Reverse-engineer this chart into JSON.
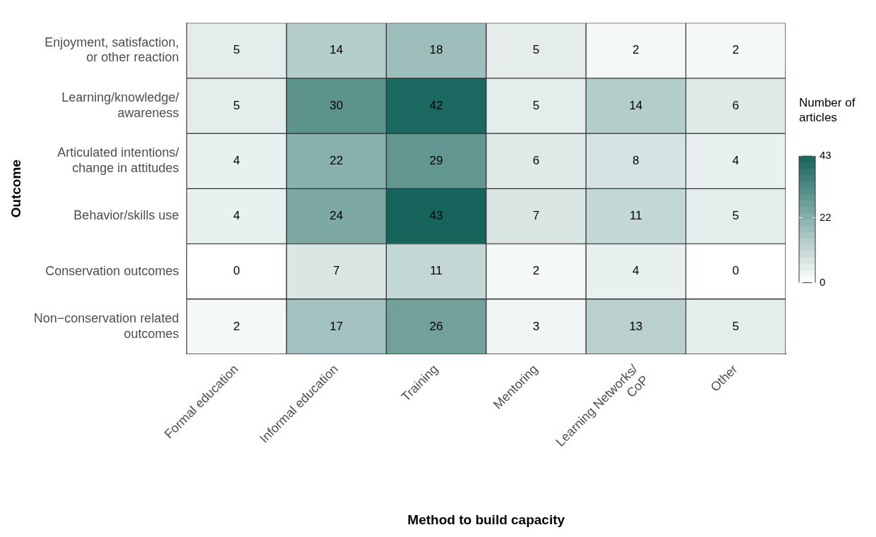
{
  "chart_data": {
    "type": "heatmap",
    "xlabel": "Method to build capacity",
    "ylabel": "Outcome",
    "clabel": "Number of articles",
    "categories": [
      "Formal education",
      "Informal education",
      "Training",
      "Mentoring",
      "Learning Networks/ CoP",
      "Other"
    ],
    "y_categories": [
      "Enjoyment, satisfaction, or other reaction",
      "Learning/knowledge/ awareness",
      "Articulated intentions/change in attitudes",
      "Behavior/skills use",
      "Conservation outcomes",
      "Non−conservation related outcomes"
    ],
    "cells": [
      [
        5,
        14,
        18,
        5,
        2,
        2
      ],
      [
        5,
        30,
        42,
        5,
        14,
        6
      ],
      [
        4,
        22,
        29,
        6,
        8,
        4
      ],
      [
        4,
        24,
        43,
        7,
        11,
        5
      ],
      [
        0,
        7,
        11,
        2,
        4,
        0
      ],
      [
        2,
        17,
        26,
        3,
        13,
        5
      ]
    ],
    "clim": [
      0,
      43
    ],
    "cticks": [
      0,
      22,
      43
    ],
    "data_labels": true
  }
}
